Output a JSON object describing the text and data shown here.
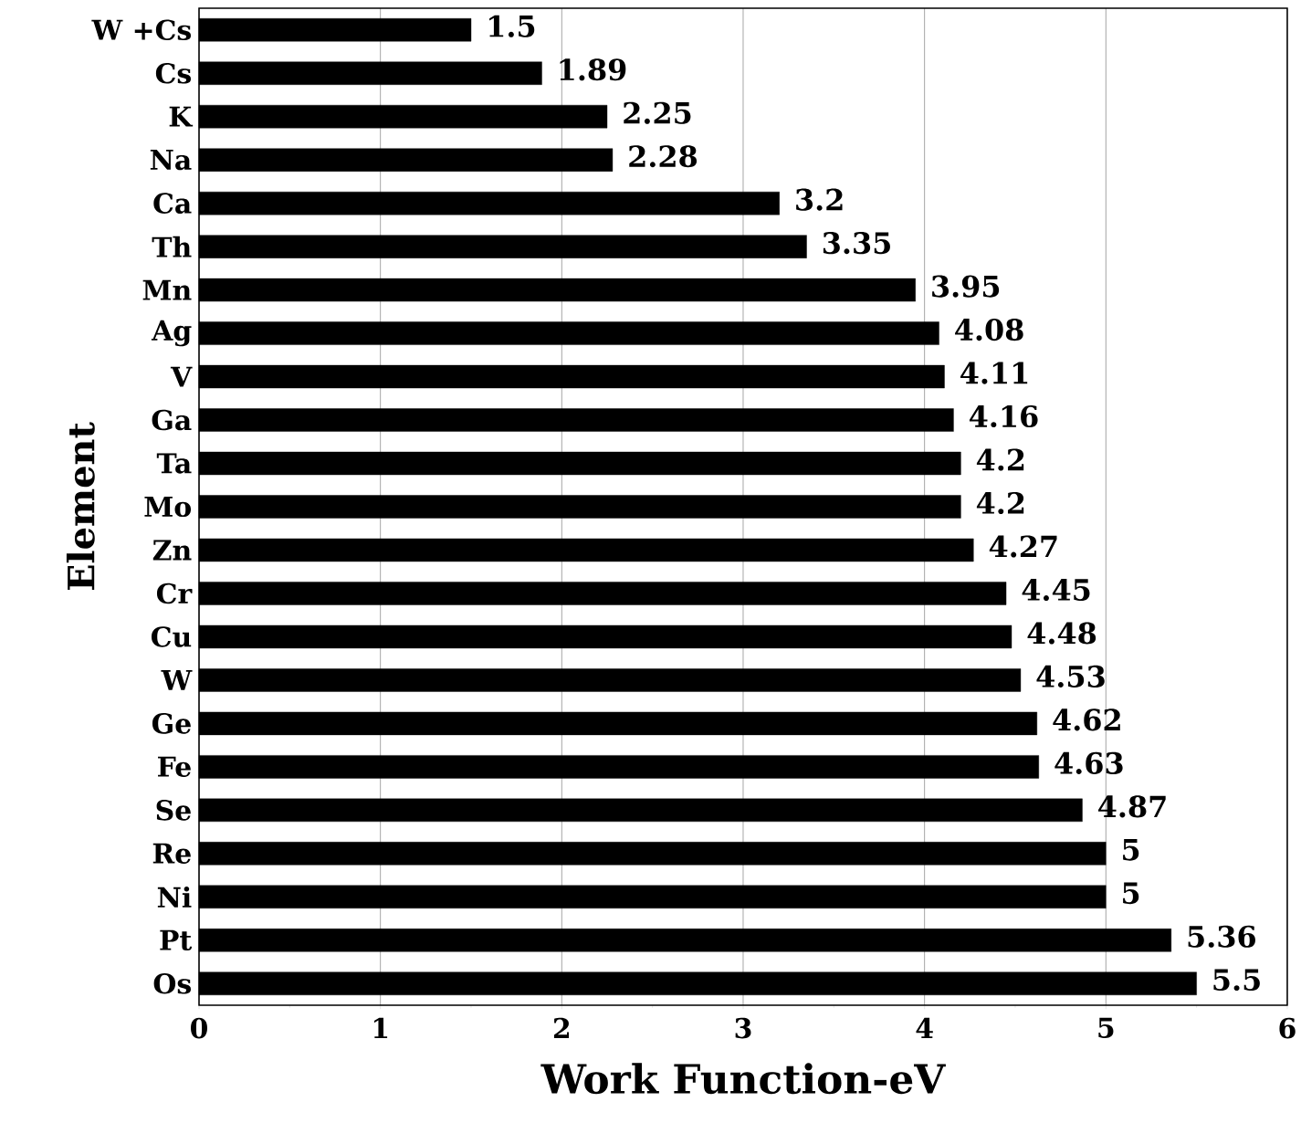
{
  "chart_data": {
    "type": "bar",
    "orientation": "horizontal",
    "xlabel": "Work Function-eV",
    "ylabel": "Element",
    "categories": [
      "W +Cs",
      "Cs",
      "K",
      "Na",
      "Ca",
      "Th",
      "Mn",
      "Ag",
      "V",
      "Ga",
      "Ta",
      "Mo",
      "Zn",
      "Cr",
      "Cu",
      "W",
      "Ge",
      "Fe",
      "Se",
      "Re",
      "Ni",
      "Pt",
      "Os"
    ],
    "values": [
      1.5,
      1.89,
      2.25,
      2.28,
      3.2,
      3.35,
      3.95,
      4.08,
      4.11,
      4.16,
      4.2,
      4.2,
      4.27,
      4.45,
      4.48,
      4.53,
      4.62,
      4.63,
      4.87,
      5,
      5,
      5.36,
      5.5
    ],
    "color": "#000000",
    "xlim": [
      0,
      6
    ],
    "xticks": [
      0,
      1,
      2,
      3,
      4,
      5,
      6
    ],
    "grid": "x",
    "data_labels": true
  }
}
